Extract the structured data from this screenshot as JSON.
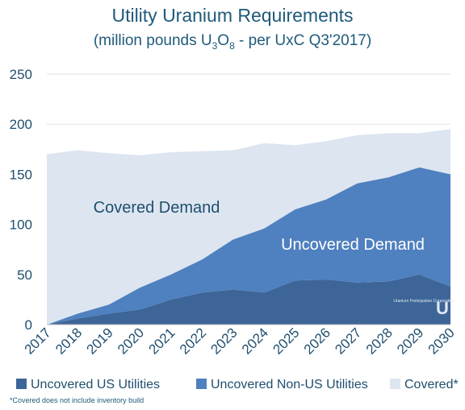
{
  "chart_data": {
    "type": "area",
    "stacked": true,
    "title": "Utility Uranium Requirements",
    "subtitle_before": "(million pounds U",
    "subtitle_sub1": "3",
    "subtitle_mid": "O",
    "subtitle_sub2": "8",
    "subtitle_after": " - per UxC Q3'2017)",
    "x": [
      "2017",
      "2018",
      "2019",
      "2020",
      "2021",
      "2022",
      "2023",
      "2024",
      "2025",
      "2026",
      "2027",
      "2028",
      "2029",
      "2030"
    ],
    "ylim": [
      0,
      250
    ],
    "yticks": [
      "0",
      "50",
      "100",
      "150",
      "200",
      "250"
    ],
    "series": [
      {
        "name": "Uncovered US Utilities",
        "color": "#3d6598",
        "values": [
          0,
          6,
          11,
          15,
          25,
          32,
          35,
          32,
          44,
          45,
          42,
          43,
          50,
          38
        ]
      },
      {
        "name": "Uncovered Non-US Utilities",
        "color": "#4f80bf",
        "values": [
          0,
          5,
          9,
          22,
          25,
          33,
          50,
          64,
          71,
          80,
          99,
          104,
          107,
          112
        ]
      },
      {
        "name": "Covered*",
        "color": "#dce5f0",
        "values": [
          170,
          163,
          151,
          132,
          122,
          108,
          89,
          85,
          64,
          58,
          48,
          44,
          34,
          45
        ]
      }
    ],
    "annotations": [
      "Covered Demand",
      "Uncovered Demand"
    ],
    "legend_position": "bottom",
    "footnote": "*Covered does not include inventory build",
    "logo_text": "Uranium Participation Corporation",
    "logo_letter": "U"
  }
}
